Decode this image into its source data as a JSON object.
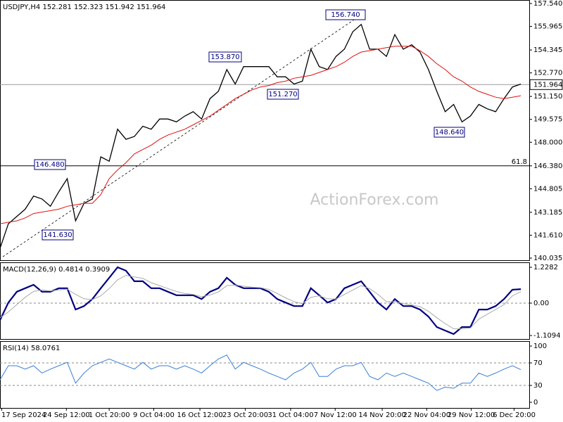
{
  "chart_data": [
    {
      "type": "line",
      "title": "USDJPY,H4  152.281 152.323 151.942 151.964",
      "watermark": "ActionForex.com",
      "x": [
        0,
        1,
        2,
        3,
        4,
        5,
        6,
        7,
        8,
        9,
        10,
        11,
        12,
        13,
        14,
        15,
        16,
        17,
        18,
        19,
        20,
        21,
        22,
        23,
        24,
        25,
        26,
        27,
        28,
        29,
        30,
        31,
        32,
        33,
        34,
        35,
        36,
        37,
        38,
        39,
        40,
        41,
        42,
        43,
        44,
        45,
        46,
        47,
        48,
        49,
        50,
        51,
        52,
        53,
        54,
        55,
        56,
        57,
        58,
        59,
        60,
        61,
        62
      ],
      "xlim": [
        0,
        63
      ],
      "series": [
        {
          "color": "#000000",
          "values": [
            140.7,
            142.4,
            142.9,
            143.4,
            144.3,
            144.1,
            143.6,
            144.6,
            145.5,
            142.6,
            143.8,
            144.1,
            147.0,
            146.7,
            148.9,
            148.2,
            148.4,
            149.1,
            148.9,
            149.6,
            149.6,
            149.4,
            149.8,
            150.1,
            149.6,
            151.0,
            151.5,
            153.0,
            152.0,
            153.2,
            153.2,
            153.2,
            153.2,
            152.5,
            152.5,
            152.0,
            152.2,
            154.4,
            153.2,
            153.0,
            153.9,
            154.4,
            155.6,
            156.1,
            154.4,
            154.4,
            153.9,
            155.4,
            154.4,
            154.7,
            154.2,
            153.0,
            151.5,
            150.1,
            150.6,
            149.4,
            149.8,
            150.6,
            150.3,
            150.1,
            151.0,
            151.8,
            152.0
          ]
        },
        {
          "color": "#dd1111",
          "values": [
            142.4,
            142.5,
            142.6,
            142.8,
            143.1,
            143.2,
            143.3,
            143.4,
            143.6,
            143.7,
            143.8,
            143.8,
            144.4,
            145.5,
            146.1,
            146.6,
            147.2,
            147.5,
            147.8,
            148.2,
            148.5,
            148.7,
            148.9,
            149.2,
            149.5,
            149.8,
            150.2,
            150.6,
            151.0,
            151.3,
            151.6,
            151.8,
            151.9,
            152.1,
            152.2,
            152.4,
            152.5,
            152.6,
            152.8,
            153.0,
            153.2,
            153.5,
            153.9,
            154.2,
            154.3,
            154.4,
            154.5,
            154.6,
            154.6,
            154.6,
            154.3,
            153.9,
            153.4,
            153.0,
            152.5,
            152.2,
            151.8,
            151.5,
            151.3,
            151.1,
            151.0,
            151.1,
            151.2
          ]
        }
      ],
      "ylim": [
        139.89,
        157.78
      ],
      "yticks": [
        {
          "value": 157.54,
          "label": "157.540"
        },
        {
          "value": 155.965,
          "label": "155.965"
        },
        {
          "value": 154.345,
          "label": "154.345"
        },
        {
          "value": 152.77,
          "label": "152.770"
        },
        {
          "value": 151.15,
          "label": "151.150"
        },
        {
          "value": 149.575,
          "label": "149.575"
        },
        {
          "value": 148.0,
          "label": "148.000"
        },
        {
          "value": 146.38,
          "label": "146.380"
        },
        {
          "value": 144.805,
          "label": "144.805"
        },
        {
          "value": 143.185,
          "label": "143.185"
        },
        {
          "value": 141.61,
          "label": "141.610"
        },
        {
          "value": 140.035,
          "label": "140.035"
        }
      ],
      "hlines": [
        {
          "value": 151.964,
          "label": "151.964",
          "color": "#999999"
        },
        {
          "value": 146.38,
          "label": "61.8",
          "color": "#000000"
        }
      ],
      "annotations": [
        {
          "value": 156.74,
          "label": "156.740"
        },
        {
          "value": 153.87,
          "label": "153.870"
        },
        {
          "value": 151.27,
          "label": "151.270"
        },
        {
          "value": 148.64,
          "label": "148.640"
        },
        {
          "value": 146.48,
          "label": "146.480"
        },
        {
          "value": 141.63,
          "label": "141.630"
        }
      ]
    },
    {
      "type": "line",
      "title": "MACD(12,26,9) 0.4814 0.3909",
      "x": [
        0,
        1,
        2,
        3,
        4,
        5,
        6,
        7,
        8,
        9,
        10,
        11,
        12,
        13,
        14,
        15,
        16,
        17,
        18,
        19,
        20,
        21,
        22,
        23,
        24,
        25,
        26,
        27,
        28,
        29,
        30,
        31,
        32,
        33,
        34,
        35,
        36,
        37,
        38,
        39,
        40,
        41,
        42,
        43,
        44,
        45,
        46,
        47,
        48,
        49,
        50,
        51,
        52,
        53,
        54,
        55,
        56,
        57,
        58,
        59,
        60,
        61,
        62
      ],
      "xlim": [
        0,
        63
      ],
      "series": [
        {
          "color": "#000080",
          "values": [
            -0.58,
            0.02,
            0.39,
            0.51,
            0.63,
            0.39,
            0.39,
            0.51,
            0.51,
            -0.22,
            -0.1,
            0.14,
            0.51,
            0.87,
            1.23,
            1.11,
            0.75,
            0.75,
            0.51,
            0.51,
            0.39,
            0.27,
            0.27,
            0.27,
            0.14,
            0.39,
            0.51,
            0.87,
            0.63,
            0.51,
            0.51,
            0.51,
            0.39,
            0.14,
            0.02,
            -0.1,
            -0.1,
            0.51,
            0.27,
            0.02,
            0.14,
            0.51,
            0.63,
            0.75,
            0.39,
            0.02,
            -0.22,
            0.14,
            -0.1,
            -0.1,
            -0.22,
            -0.46,
            -0.82,
            -0.94,
            -1.06,
            -0.82,
            -0.82,
            -0.22,
            -0.22,
            -0.1,
            0.14,
            0.46,
            0.48
          ]
        },
        {
          "color": "#aaaaaa",
          "values": [
            -0.5,
            -0.3,
            -0.05,
            0.2,
            0.4,
            0.45,
            0.42,
            0.45,
            0.48,
            0.3,
            0.15,
            0.12,
            0.25,
            0.5,
            0.8,
            0.95,
            0.9,
            0.85,
            0.7,
            0.6,
            0.5,
            0.4,
            0.33,
            0.3,
            0.22,
            0.28,
            0.38,
            0.6,
            0.62,
            0.58,
            0.55,
            0.53,
            0.47,
            0.33,
            0.18,
            0.05,
            -0.02,
            0.2,
            0.25,
            0.15,
            0.14,
            0.3,
            0.45,
            0.6,
            0.5,
            0.3,
            0.05,
            0.05,
            -0.02,
            -0.06,
            -0.12,
            -0.28,
            -0.5,
            -0.7,
            -0.88,
            -0.88,
            -0.85,
            -0.55,
            -0.38,
            -0.22,
            -0.05,
            0.25,
            0.39
          ]
        }
      ],
      "ylim": [
        -1.229,
        1.398
      ],
      "yticks": [
        1.2282,
        {
          "value": 0,
          "label": "0.00"
        },
        -1.1094
      ],
      "levels": [
        0
      ]
    },
    {
      "type": "line",
      "title": "RSI(14) 58.0761",
      "x": [
        0,
        1,
        2,
        3,
        4,
        5,
        6,
        7,
        8,
        9,
        10,
        11,
        12,
        13,
        14,
        15,
        16,
        17,
        18,
        19,
        20,
        21,
        22,
        23,
        24,
        25,
        26,
        27,
        28,
        29,
        30,
        31,
        32,
        33,
        34,
        35,
        36,
        37,
        38,
        39,
        40,
        41,
        42,
        43,
        44,
        45,
        46,
        47,
        48,
        49,
        50,
        51,
        52,
        53,
        54,
        55,
        56,
        57,
        58,
        59,
        60,
        61,
        62
      ],
      "xlim": [
        0,
        63
      ],
      "series": [
        {
          "color": "#3a7fd5",
          "values": [
            40,
            65,
            65,
            59,
            65,
            52,
            59,
            65,
            71,
            34,
            52,
            65,
            71,
            77,
            71,
            65,
            59,
            71,
            59,
            65,
            65,
            59,
            65,
            59,
            52,
            65,
            77,
            84,
            59,
            71,
            65,
            59,
            52,
            46,
            40,
            52,
            59,
            71,
            46,
            46,
            59,
            65,
            65,
            71,
            46,
            40,
            52,
            46,
            52,
            46,
            40,
            34,
            21,
            27,
            25,
            34,
            34,
            52,
            46,
            52,
            59,
            65,
            58
          ]
        }
      ],
      "ylim": [
        -10,
        108.75
      ],
      "yticks": [
        100,
        70,
        30,
        0
      ],
      "levels": [
        70,
        30
      ],
      "xticks": [
        {
          "value": 0.2,
          "label": "17 Sep 2024"
        },
        {
          "value": 7.9,
          "label": "24 Sep 12:00"
        },
        {
          "value": 13,
          "label": "1 Oct 20:00"
        },
        {
          "value": 18.3,
          "label": "9 Oct 04:00"
        },
        {
          "value": 23.8,
          "label": "16 Oct 12:00"
        },
        {
          "value": 29.2,
          "label": "23 Oct 20:00"
        },
        {
          "value": 34.6,
          "label": "31 Oct 04:00"
        },
        {
          "value": 39.9,
          "label": "7 Nov 12:00"
        },
        {
          "value": 45.5,
          "label": "14 Nov 20:00"
        },
        {
          "value": 50.8,
          "label": "22 Nov 04:00"
        },
        {
          "value": 56.1,
          "label": "29 Nov 12:00"
        },
        {
          "value": 61.2,
          "label": "6 Dec 20:00"
        }
      ]
    }
  ]
}
